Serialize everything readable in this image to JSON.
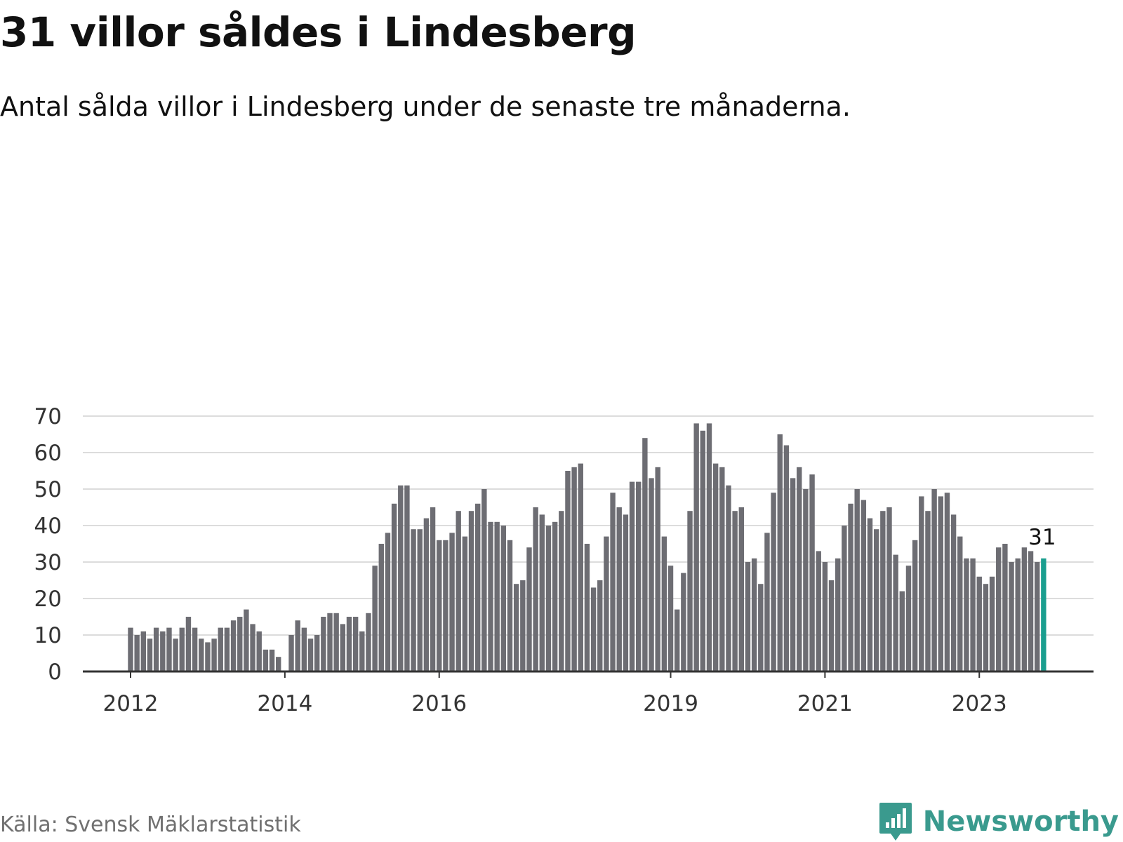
{
  "header": {
    "title": "31 villor såldes i Lindesberg",
    "subtitle": "Antal sålda villor i Lindesberg under de senaste tre månaderna."
  },
  "footer": {
    "source": "Källa: Svensk Mäklarstatistik",
    "brand": "Newsworthy"
  },
  "colors": {
    "bar": "#6d6d73",
    "highlight": "#1a9e8f",
    "grid": "#dcdcdc",
    "axis": "#333333",
    "brand": "#3a9a8e"
  },
  "icons": {
    "brand_logo": "bar-chart-speech-bubble-icon"
  },
  "chart_data": {
    "type": "bar",
    "title": "31 villor såldes i Lindesberg",
    "subtitle": "Antal sålda villor i Lindesberg under de senaste tre månaderna.",
    "xlabel": "",
    "ylabel": "",
    "ylim": [
      0,
      70
    ],
    "yticks": [
      0,
      10,
      20,
      30,
      40,
      50,
      60,
      70
    ],
    "grid": true,
    "x_start": "2012-01",
    "x_ticks": [
      {
        "label": "2012",
        "x": "2012-01"
      },
      {
        "label": "2014",
        "x": "2014-01"
      },
      {
        "label": "2016",
        "x": "2016-01"
      },
      {
        "label": "2019",
        "x": "2019-01"
      },
      {
        "label": "2021",
        "x": "2021-01"
      },
      {
        "label": "2023",
        "x": "2023-01"
      }
    ],
    "values": [
      12,
      10,
      11,
      9,
      12,
      11,
      12,
      9,
      12,
      15,
      12,
      9,
      8,
      9,
      12,
      12,
      14,
      15,
      17,
      13,
      11,
      6,
      6,
      4,
      0,
      10,
      14,
      12,
      9,
      10,
      15,
      16,
      16,
      13,
      15,
      15,
      11,
      16,
      29,
      35,
      38,
      46,
      51,
      51,
      39,
      39,
      42,
      45,
      36,
      36,
      38,
      44,
      37,
      44,
      46,
      50,
      41,
      41,
      40,
      36,
      24,
      25,
      34,
      45,
      43,
      40,
      41,
      44,
      55,
      56,
      57,
      35,
      23,
      25,
      37,
      49,
      45,
      43,
      52,
      52,
      64,
      53,
      56,
      37,
      29,
      17,
      27,
      44,
      68,
      66,
      68,
      57,
      56,
      51,
      44,
      45,
      30,
      31,
      24,
      38,
      49,
      65,
      62,
      53,
      56,
      50,
      54,
      33,
      30,
      25,
      31,
      40,
      46,
      50,
      47,
      42,
      39,
      44,
      45,
      32,
      22,
      29,
      36,
      48,
      44,
      50,
      48,
      49,
      43,
      37,
      31,
      31,
      26,
      24,
      26,
      34,
      35,
      30,
      31,
      34,
      33,
      30,
      31
    ],
    "highlight_index": 142,
    "highlight_label": "31"
  }
}
